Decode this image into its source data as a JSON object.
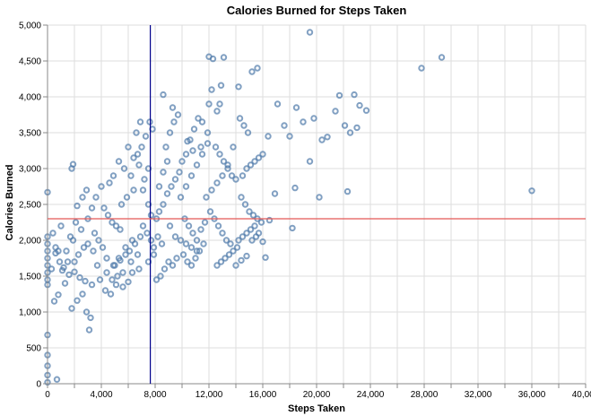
{
  "chart_data": {
    "type": "scatter",
    "title": "Calories Burned for Steps Taken",
    "xlabel": "Steps Taken",
    "ylabel": "Calories Burned",
    "xlim": [
      0,
      40000
    ],
    "ylim": [
      0,
      5000
    ],
    "x_ticks": [
      "0",
      "4,000",
      "8,000",
      "12,000",
      "16,000",
      "20,000",
      "24,000",
      "28,000",
      "32,000",
      "36,000",
      "40,000"
    ],
    "y_ticks": [
      "0",
      "500",
      "1,000",
      "1,500",
      "2,000",
      "2,500",
      "3,000",
      "3,500",
      "4,000",
      "4,500",
      "5,000"
    ],
    "grid": true,
    "reference_lines": [
      {
        "orientation": "vertical",
        "value": 7640,
        "color": "#00008b"
      },
      {
        "orientation": "horizontal",
        "value": 2300,
        "color": "#e45756"
      }
    ],
    "marker_color": "#4c78a8",
    "points": [
      [
        0,
        20
      ],
      [
        0,
        120
      ],
      [
        0,
        250
      ],
      [
        0,
        400
      ],
      [
        0,
        680
      ],
      [
        0,
        2670
      ],
      [
        700,
        60
      ],
      [
        0,
        1380
      ],
      [
        0,
        1450
      ],
      [
        0,
        1550
      ],
      [
        0,
        1650
      ],
      [
        0,
        1750
      ],
      [
        0,
        1850
      ],
      [
        0,
        1950
      ],
      [
        0,
        2050
      ],
      [
        300,
        1600
      ],
      [
        400,
        2100
      ],
      [
        600,
        1900
      ],
      [
        800,
        1850
      ],
      [
        1000,
        2200
      ],
      [
        500,
        1150
      ],
      [
        800,
        1240
      ],
      [
        1300,
        1400
      ],
      [
        1600,
        1520
      ],
      [
        1900,
        2000
      ],
      [
        1800,
        1050
      ],
      [
        2200,
        1160
      ],
      [
        2600,
        1250
      ],
      [
        2900,
        1000
      ],
      [
        3200,
        920
      ],
      [
        3100,
        750
      ],
      [
        1800,
        3000
      ],
      [
        1900,
        3060
      ],
      [
        2200,
        2480
      ],
      [
        2600,
        2600
      ],
      [
        2900,
        2700
      ],
      [
        3300,
        2450
      ],
      [
        3000,
        2300
      ],
      [
        2500,
        2150
      ],
      [
        3500,
        2100
      ],
      [
        3800,
        2000
      ],
      [
        4100,
        1900
      ],
      [
        4400,
        1750
      ],
      [
        4000,
        2750
      ],
      [
        4600,
        2800
      ],
      [
        4900,
        2900
      ],
      [
        5300,
        3100
      ],
      [
        5700,
        3000
      ],
      [
        6200,
        2900
      ],
      [
        5000,
        1650
      ],
      [
        5400,
        1720
      ],
      [
        5800,
        1800
      ],
      [
        6100,
        1850
      ],
      [
        6500,
        1950
      ],
      [
        6900,
        2050
      ],
      [
        4800,
        1450
      ],
      [
        5200,
        1500
      ],
      [
        5600,
        1350
      ],
      [
        6000,
        1420
      ],
      [
        6300,
        1550
      ],
      [
        6800,
        1600
      ],
      [
        5500,
        2500
      ],
      [
        5900,
        2600
      ],
      [
        6400,
        2700
      ],
      [
        6700,
        3200
      ],
      [
        7000,
        3300
      ],
      [
        7300,
        3450
      ],
      [
        6600,
        3500
      ],
      [
        6900,
        3650
      ],
      [
        7600,
        3650
      ],
      [
        7800,
        3550
      ],
      [
        7500,
        3000
      ],
      [
        7200,
        2850
      ],
      [
        7100,
        2200
      ],
      [
        7400,
        2100
      ],
      [
        7700,
        2000
      ],
      [
        7900,
        1900
      ],
      [
        8200,
        2050
      ],
      [
        8500,
        1950
      ],
      [
        8100,
        1450
      ],
      [
        8400,
        1500
      ],
      [
        8700,
        1600
      ],
      [
        9000,
        1700
      ],
      [
        9300,
        1650
      ],
      [
        9600,
        1750
      ],
      [
        8300,
        2400
      ],
      [
        8600,
        2500
      ],
      [
        8900,
        2650
      ],
      [
        9200,
        2750
      ],
      [
        9500,
        2850
      ],
      [
        9800,
        2950
      ],
      [
        8800,
        3300
      ],
      [
        9100,
        3500
      ],
      [
        9400,
        3650
      ],
      [
        9700,
        3750
      ],
      [
        9300,
        3850
      ],
      [
        8600,
        4030
      ],
      [
        10000,
        3100
      ],
      [
        10300,
        3200
      ],
      [
        10600,
        3400
      ],
      [
        10900,
        3550
      ],
      [
        11200,
        3700
      ],
      [
        11500,
        3650
      ],
      [
        10200,
        2300
      ],
      [
        10500,
        2200
      ],
      [
        10800,
        2100
      ],
      [
        11100,
        2000
      ],
      [
        11400,
        2150
      ],
      [
        11700,
        2250
      ],
      [
        10100,
        1800
      ],
      [
        10400,
        1700
      ],
      [
        10700,
        1650
      ],
      [
        11000,
        1750
      ],
      [
        11300,
        1850
      ],
      [
        11600,
        1950
      ],
      [
        12000,
        3900
      ],
      [
        12200,
        4100
      ],
      [
        12300,
        4530
      ],
      [
        12000,
        4560
      ],
      [
        13100,
        4550
      ],
      [
        12800,
        3900
      ],
      [
        12500,
        3300
      ],
      [
        12800,
        3200
      ],
      [
        13100,
        3100
      ],
      [
        13400,
        3000
      ],
      [
        13700,
        2900
      ],
      [
        14000,
        2850
      ],
      [
        12100,
        2400
      ],
      [
        12400,
        2300
      ],
      [
        12700,
        2200
      ],
      [
        13000,
        2100
      ],
      [
        13300,
        2000
      ],
      [
        13600,
        1950
      ],
      [
        12600,
        1650
      ],
      [
        12900,
        1700
      ],
      [
        13200,
        1750
      ],
      [
        13500,
        1800
      ],
      [
        13800,
        1850
      ],
      [
        14100,
        1900
      ],
      [
        14300,
        3700
      ],
      [
        14600,
        3600
      ],
      [
        14900,
        3500
      ],
      [
        15200,
        4350
      ],
      [
        15600,
        4400
      ],
      [
        14200,
        4140
      ],
      [
        14500,
        2900
      ],
      [
        14800,
        3000
      ],
      [
        15100,
        3050
      ],
      [
        15400,
        3100
      ],
      [
        15700,
        3150
      ],
      [
        16000,
        3200
      ],
      [
        14400,
        2600
      ],
      [
        14700,
        2500
      ],
      [
        15000,
        2400
      ],
      [
        15300,
        2350
      ],
      [
        15600,
        2300
      ],
      [
        15900,
        2250
      ],
      [
        14200,
        2000
      ],
      [
        14500,
        2050
      ],
      [
        14800,
        2100
      ],
      [
        15100,
        2150
      ],
      [
        15400,
        2200
      ],
      [
        15700,
        2100
      ],
      [
        16200,
        1760
      ],
      [
        16500,
        2280
      ],
      [
        16900,
        2650
      ],
      [
        16400,
        3450
      ],
      [
        17100,
        3900
      ],
      [
        17600,
        3600
      ],
      [
        18000,
        3450
      ],
      [
        18200,
        2170
      ],
      [
        18400,
        2730
      ],
      [
        18500,
        3850
      ],
      [
        19000,
        3650
      ],
      [
        19500,
        3100
      ],
      [
        19500,
        4900
      ],
      [
        19800,
        3700
      ],
      [
        20200,
        2600
      ],
      [
        20400,
        3400
      ],
      [
        20800,
        3440
      ],
      [
        21400,
        3800
      ],
      [
        21700,
        4020
      ],
      [
        22100,
        3600
      ],
      [
        22300,
        2680
      ],
      [
        22500,
        3500
      ],
      [
        22800,
        4030
      ],
      [
        23200,
        3880
      ],
      [
        23700,
        3810
      ],
      [
        23000,
        3570
      ],
      [
        27800,
        4400
      ],
      [
        29300,
        4550
      ],
      [
        36000,
        2690
      ],
      [
        2000,
        1700
      ],
      [
        2300,
        1800
      ],
      [
        2700,
        1900
      ],
      [
        3000,
        1950
      ],
      [
        3400,
        1850
      ],
      [
        3700,
        1650
      ],
      [
        1200,
        1620
      ],
      [
        1500,
        1700
      ],
      [
        2000,
        1560
      ],
      [
        2400,
        1480
      ],
      [
        2800,
        1430
      ],
      [
        3300,
        1380
      ],
      [
        3600,
        2600
      ],
      [
        4200,
        2450
      ],
      [
        4500,
        2350
      ],
      [
        4800,
        2250
      ],
      [
        5100,
        2200
      ],
      [
        5400,
        2150
      ],
      [
        4300,
        1300
      ],
      [
        4700,
        1250
      ],
      [
        5100,
        1380
      ],
      [
        5600,
        1550
      ],
      [
        6200,
        1700
      ],
      [
        6700,
        1800
      ],
      [
        600,
        1820
      ],
      [
        900,
        1700
      ],
      [
        1100,
        1580
      ],
      [
        1400,
        1850
      ],
      [
        1700,
        2050
      ],
      [
        2100,
        2250
      ],
      [
        7500,
        1700
      ],
      [
        7900,
        1800
      ],
      [
        8100,
        2300
      ],
      [
        8300,
        2750
      ],
      [
        8600,
        2950
      ],
      [
        8900,
        3100
      ],
      [
        9900,
        2600
      ],
      [
        10300,
        2750
      ],
      [
        10700,
        2900
      ],
      [
        11100,
        3050
      ],
      [
        11500,
        3200
      ],
      [
        11900,
        3350
      ],
      [
        9100,
        2200
      ],
      [
        9500,
        2050
      ],
      [
        9900,
        2000
      ],
      [
        10300,
        1950
      ],
      [
        10700,
        1900
      ],
      [
        11100,
        1850
      ],
      [
        11800,
        2600
      ],
      [
        12200,
        2700
      ],
      [
        12600,
        2800
      ],
      [
        13000,
        2900
      ],
      [
        13400,
        3050
      ],
      [
        13800,
        3300
      ],
      [
        12900,
        4160
      ],
      [
        12600,
        3800
      ],
      [
        11900,
        3500
      ],
      [
        11400,
        3300
      ],
      [
        10800,
        3250
      ],
      [
        10400,
        3380
      ],
      [
        6000,
        3300
      ],
      [
        6400,
        3150
      ],
      [
        6800,
        3050
      ],
      [
        7100,
        2700
      ],
      [
        7500,
        2500
      ],
      [
        7700,
        2350
      ],
      [
        3900,
        1450
      ],
      [
        4400,
        1550
      ],
      [
        4900,
        1650
      ],
      [
        5300,
        1750
      ],
      [
        5800,
        1900
      ],
      [
        6300,
        2000
      ],
      [
        14000,
        1650
      ],
      [
        14400,
        1720
      ],
      [
        14800,
        1780
      ],
      [
        15200,
        2000
      ],
      [
        15500,
        2050
      ],
      [
        16000,
        1980
      ]
    ]
  }
}
